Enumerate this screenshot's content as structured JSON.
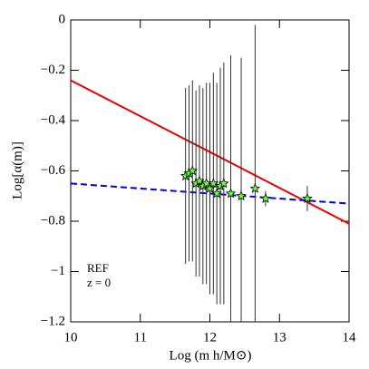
{
  "chart_data": {
    "type": "scatter",
    "x_label": "Log (m h/M⊙)",
    "y_label": "Log[α(m)]",
    "annotations": [
      "REF",
      "z = 0"
    ],
    "xlim": [
      10,
      14
    ],
    "ylim": [
      -1.2,
      0
    ],
    "xticks": [
      10,
      11,
      12,
      13,
      14
    ],
    "yticks": [
      {
        "value": -1.2,
        "label": "−1.2"
      },
      {
        "value": -1,
        "label": "−1"
      },
      {
        "value": -0.8,
        "label": "−0.8"
      },
      {
        "value": -0.6,
        "label": "−0.6"
      },
      {
        "value": -0.4,
        "label": "−0.4"
      },
      {
        "value": -0.2,
        "label": "−0.2"
      },
      0
    ],
    "x": [
      11.65,
      11.7,
      11.75,
      11.8,
      11.85,
      11.9,
      11.95,
      12.0,
      12.05,
      12.1,
      12.15,
      12.2,
      12.3,
      12.45,
      12.65,
      12.8,
      13.4
    ],
    "values": [
      -0.62,
      -0.61,
      -0.6,
      -0.65,
      -0.64,
      -0.66,
      -0.65,
      -0.67,
      -0.65,
      -0.69,
      -0.66,
      -0.65,
      -0.69,
      -0.7,
      -0.67,
      -0.71,
      -0.71
    ],
    "errors": [
      0.35,
      0.35,
      0.36,
      0.37,
      0.38,
      0.39,
      0.4,
      0.42,
      0.44,
      0.44,
      0.47,
      0.48,
      0.55,
      0.55,
      0.65,
      0.03,
      0.05
    ],
    "color": "#66ff33",
    "fits": [
      {
        "color": "#ee0000",
        "dashed": false,
        "x": [
          10,
          14
        ],
        "values": [
          -0.24,
          -0.81
        ]
      },
      {
        "color": "#0000ee",
        "dashed": true,
        "x": [
          10,
          14
        ],
        "values": [
          -0.65,
          -0.73
        ]
      }
    ]
  }
}
